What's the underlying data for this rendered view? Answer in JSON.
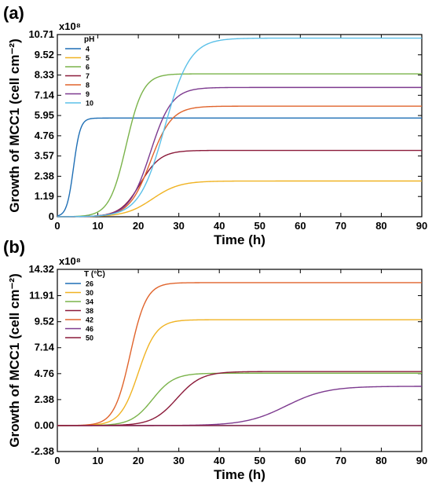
{
  "chart_data": [
    {
      "type": "line",
      "panel_label": "(a)",
      "xlabel": "Time (h)",
      "ylabel": "Growth of MCC1 (cell cm⁻²)",
      "multiplier": "x10⁸",
      "legend_title": "pH",
      "legend_position": "top-left",
      "xlim": [
        0,
        90
      ],
      "ylim": [
        0,
        10.71
      ],
      "xticks": [
        0,
        10,
        20,
        30,
        40,
        50,
        60,
        70,
        80,
        90
      ],
      "yticks": [
        0,
        1.19,
        2.38,
        3.57,
        4.76,
        5.95,
        7.14,
        8.33,
        9.52,
        10.71
      ],
      "ytick_labels": [
        "0",
        "1.19",
        "2.38",
        "3.57",
        "4.76",
        "5.95",
        "7.14",
        "8.33",
        "9.52",
        "10.71"
      ],
      "grid": false,
      "series": [
        {
          "name": "4",
          "color": "#1f6fb5",
          "max": 5.8,
          "t_mid": 4.0,
          "rate": 1.2
        },
        {
          "name": "5",
          "color": "#f0b323",
          "max": 2.1,
          "t_mid": 23.5,
          "rate": 0.3
        },
        {
          "name": "6",
          "color": "#7ab34a",
          "max": 8.4,
          "t_mid": 17.0,
          "rate": 0.48
        },
        {
          "name": "7",
          "color": "#8b1a3a",
          "max": 3.9,
          "t_mid": 20.5,
          "rate": 0.4
        },
        {
          "name": "8",
          "color": "#e0642c",
          "max": 6.5,
          "t_mid": 23.0,
          "rate": 0.38
        },
        {
          "name": "9",
          "color": "#7d3a8f",
          "max": 7.6,
          "t_mid": 23.0,
          "rate": 0.38
        },
        {
          "name": "10",
          "color": "#5bc0e8",
          "max": 10.5,
          "t_mid": 26.5,
          "rate": 0.32
        }
      ]
    },
    {
      "type": "line",
      "panel_label": "(b)",
      "xlabel": "Time (h)",
      "ylabel": "Growth of MCC1 (cell cm⁻²)",
      "multiplier": "x10⁸",
      "legend_title": "T (°C)",
      "legend_position": "top-left",
      "xlim": [
        0,
        90
      ],
      "ylim": [
        -2.38,
        14.32
      ],
      "xticks": [
        0,
        10,
        20,
        30,
        40,
        50,
        60,
        70,
        80,
        90
      ],
      "yticks": [
        -2.38,
        0,
        2.38,
        4.76,
        7.14,
        9.52,
        11.91,
        14.32
      ],
      "ytick_labels": [
        "-2.38",
        "0.00",
        "2.38",
        "4.76",
        "7.14",
        "9.52",
        "11.91",
        "14.32"
      ],
      "grid": false,
      "series": [
        {
          "name": "26",
          "color": "#1f6fb5",
          "max": 0.0,
          "t_mid": 50,
          "rate": 0.3
        },
        {
          "name": "30",
          "color": "#f0b323",
          "max": 9.7,
          "t_mid": 20.0,
          "rate": 0.45
        },
        {
          "name": "34",
          "color": "#7ab34a",
          "max": 4.8,
          "t_mid": 23.5,
          "rate": 0.38
        },
        {
          "name": "38",
          "color": "#8b1a3a",
          "max": 4.95,
          "t_mid": 29.5,
          "rate": 0.33
        },
        {
          "name": "42",
          "color": "#e0642c",
          "max": 13.1,
          "t_mid": 18.0,
          "rate": 0.5
        },
        {
          "name": "46",
          "color": "#7d3a8f",
          "max": 3.6,
          "t_mid": 56.5,
          "rate": 0.2
        },
        {
          "name": "50",
          "color": "#8b1a3a",
          "max": 0.0,
          "t_mid": 50,
          "rate": 0.3
        }
      ]
    }
  ]
}
